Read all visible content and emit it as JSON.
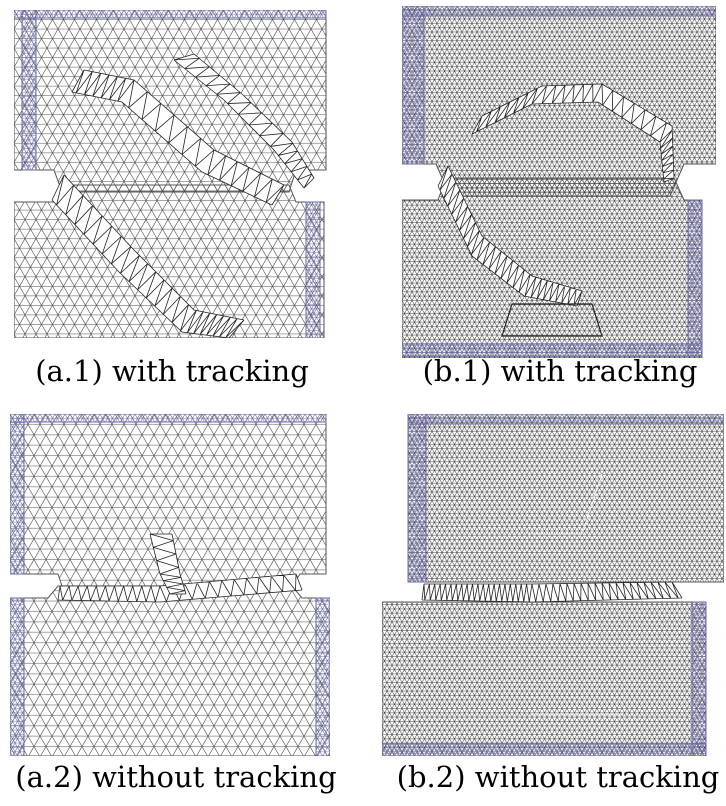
{
  "figure": {
    "panels": [
      {
        "id": "a1",
        "caption": "(a.1) with tracking",
        "mesh": "coarse",
        "variant": "tracking"
      },
      {
        "id": "b1",
        "caption": "(b.1) with tracking",
        "mesh": "fine",
        "variant": "tracking"
      },
      {
        "id": "a2",
        "caption": "(a.2) without tracking",
        "mesh": "coarse",
        "variant": "no-tracking"
      },
      {
        "id": "b2",
        "caption": "(b.2) without tracking",
        "mesh": "fine",
        "variant": "no-tracking"
      }
    ],
    "colors": {
      "mesh_line": "#4a4a4a",
      "boundary_mesh": "#6a6aa8",
      "background": "#ffffff"
    }
  }
}
